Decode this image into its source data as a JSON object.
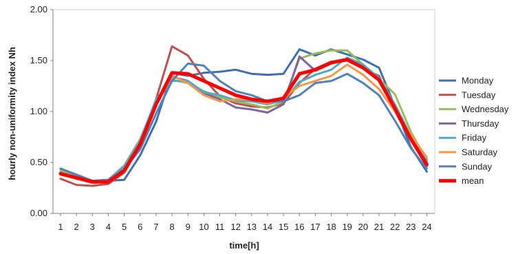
{
  "chart_data": {
    "type": "line",
    "title": "",
    "xlabel": "time[h]",
    "ylabel": "hourly non-uniformity index Nh",
    "x": [
      1,
      2,
      3,
      4,
      5,
      6,
      7,
      8,
      9,
      10,
      11,
      12,
      13,
      14,
      15,
      16,
      17,
      18,
      19,
      20,
      21,
      22,
      23,
      24
    ],
    "x_tick_labels": [
      "1",
      "2",
      "3",
      "4",
      "5",
      "6",
      "7",
      "8",
      "9",
      "10",
      "11",
      "12",
      "13",
      "14",
      "15",
      "16",
      "17",
      "18",
      "19",
      "20",
      "21",
      "22",
      "23",
      "24"
    ],
    "ylim": [
      0,
      2
    ],
    "y_ticks": [
      0,
      0.5,
      1,
      1.5,
      2
    ],
    "y_tick_labels": [
      "0.00",
      "0.50",
      "1.00",
      "1.50",
      "2.00"
    ],
    "grid": false,
    "legend_position": "right",
    "series": [
      {
        "name": "Monday",
        "color": "#3e6fb0",
        "width": 3,
        "values": [
          0.4,
          0.36,
          0.31,
          0.32,
          0.33,
          0.57,
          0.9,
          1.38,
          1.35,
          1.38,
          1.39,
          1.41,
          1.37,
          1.36,
          1.37,
          1.61,
          1.55,
          1.61,
          1.56,
          1.51,
          1.43,
          1.05,
          0.65,
          0.41
        ]
      },
      {
        "name": "Tuesday",
        "color": "#c0504d",
        "width": 3,
        "values": [
          0.34,
          0.28,
          0.27,
          0.29,
          0.4,
          0.67,
          1.12,
          1.64,
          1.55,
          1.32,
          1.15,
          1.08,
          1.05,
          1.04,
          1.08,
          1.28,
          1.42,
          1.49,
          1.5,
          1.42,
          1.35,
          1.0,
          0.72,
          0.46
        ]
      },
      {
        "name": "Wednesday",
        "color": "#9bbb59",
        "width": 3,
        "values": [
          0.42,
          0.37,
          0.32,
          0.33,
          0.47,
          0.73,
          1.1,
          1.31,
          1.28,
          1.2,
          1.14,
          1.1,
          1.07,
          1.03,
          1.1,
          1.52,
          1.57,
          1.6,
          1.6,
          1.46,
          1.32,
          1.17,
          0.8,
          0.52
        ]
      },
      {
        "name": "Thursday",
        "color": "#8064a2",
        "width": 3,
        "values": [
          0.39,
          0.34,
          0.3,
          0.31,
          0.44,
          0.71,
          1.08,
          1.34,
          1.3,
          1.18,
          1.12,
          1.04,
          1.02,
          0.99,
          1.07,
          1.54,
          1.4,
          1.47,
          1.51,
          1.43,
          1.31,
          1.02,
          0.73,
          0.5
        ]
      },
      {
        "name": "Friday",
        "color": "#4bacc6",
        "width": 3,
        "values": [
          0.44,
          0.38,
          0.32,
          0.33,
          0.46,
          0.72,
          1.12,
          1.3,
          1.3,
          1.19,
          1.16,
          1.11,
          1.1,
          1.07,
          1.11,
          1.29,
          1.36,
          1.41,
          1.53,
          1.46,
          1.33,
          1.07,
          0.76,
          0.53
        ]
      },
      {
        "name": "Saturday",
        "color": "#f79646",
        "width": 3,
        "values": [
          0.38,
          0.34,
          0.3,
          0.31,
          0.42,
          0.68,
          1.06,
          1.35,
          1.28,
          1.16,
          1.1,
          1.12,
          1.12,
          1.08,
          1.14,
          1.25,
          1.3,
          1.35,
          1.46,
          1.36,
          1.22,
          1.0,
          0.77,
          0.55
        ]
      },
      {
        "name": "Sunday",
        "color": "#4f81bd",
        "width": 3,
        "values": [
          0.44,
          0.38,
          0.32,
          0.33,
          0.43,
          0.63,
          0.98,
          1.3,
          1.47,
          1.45,
          1.3,
          1.2,
          1.16,
          1.1,
          1.1,
          1.16,
          1.28,
          1.3,
          1.37,
          1.28,
          1.16,
          0.91,
          0.64,
          0.44
        ]
      },
      {
        "name": "mean",
        "color": "#ff0000",
        "width": 5,
        "values": [
          0.39,
          0.35,
          0.31,
          0.31,
          0.42,
          0.68,
          1.07,
          1.38,
          1.37,
          1.3,
          1.23,
          1.16,
          1.12,
          1.1,
          1.13,
          1.37,
          1.41,
          1.48,
          1.51,
          1.43,
          1.31,
          1.03,
          0.73,
          0.48
        ]
      }
    ]
  }
}
